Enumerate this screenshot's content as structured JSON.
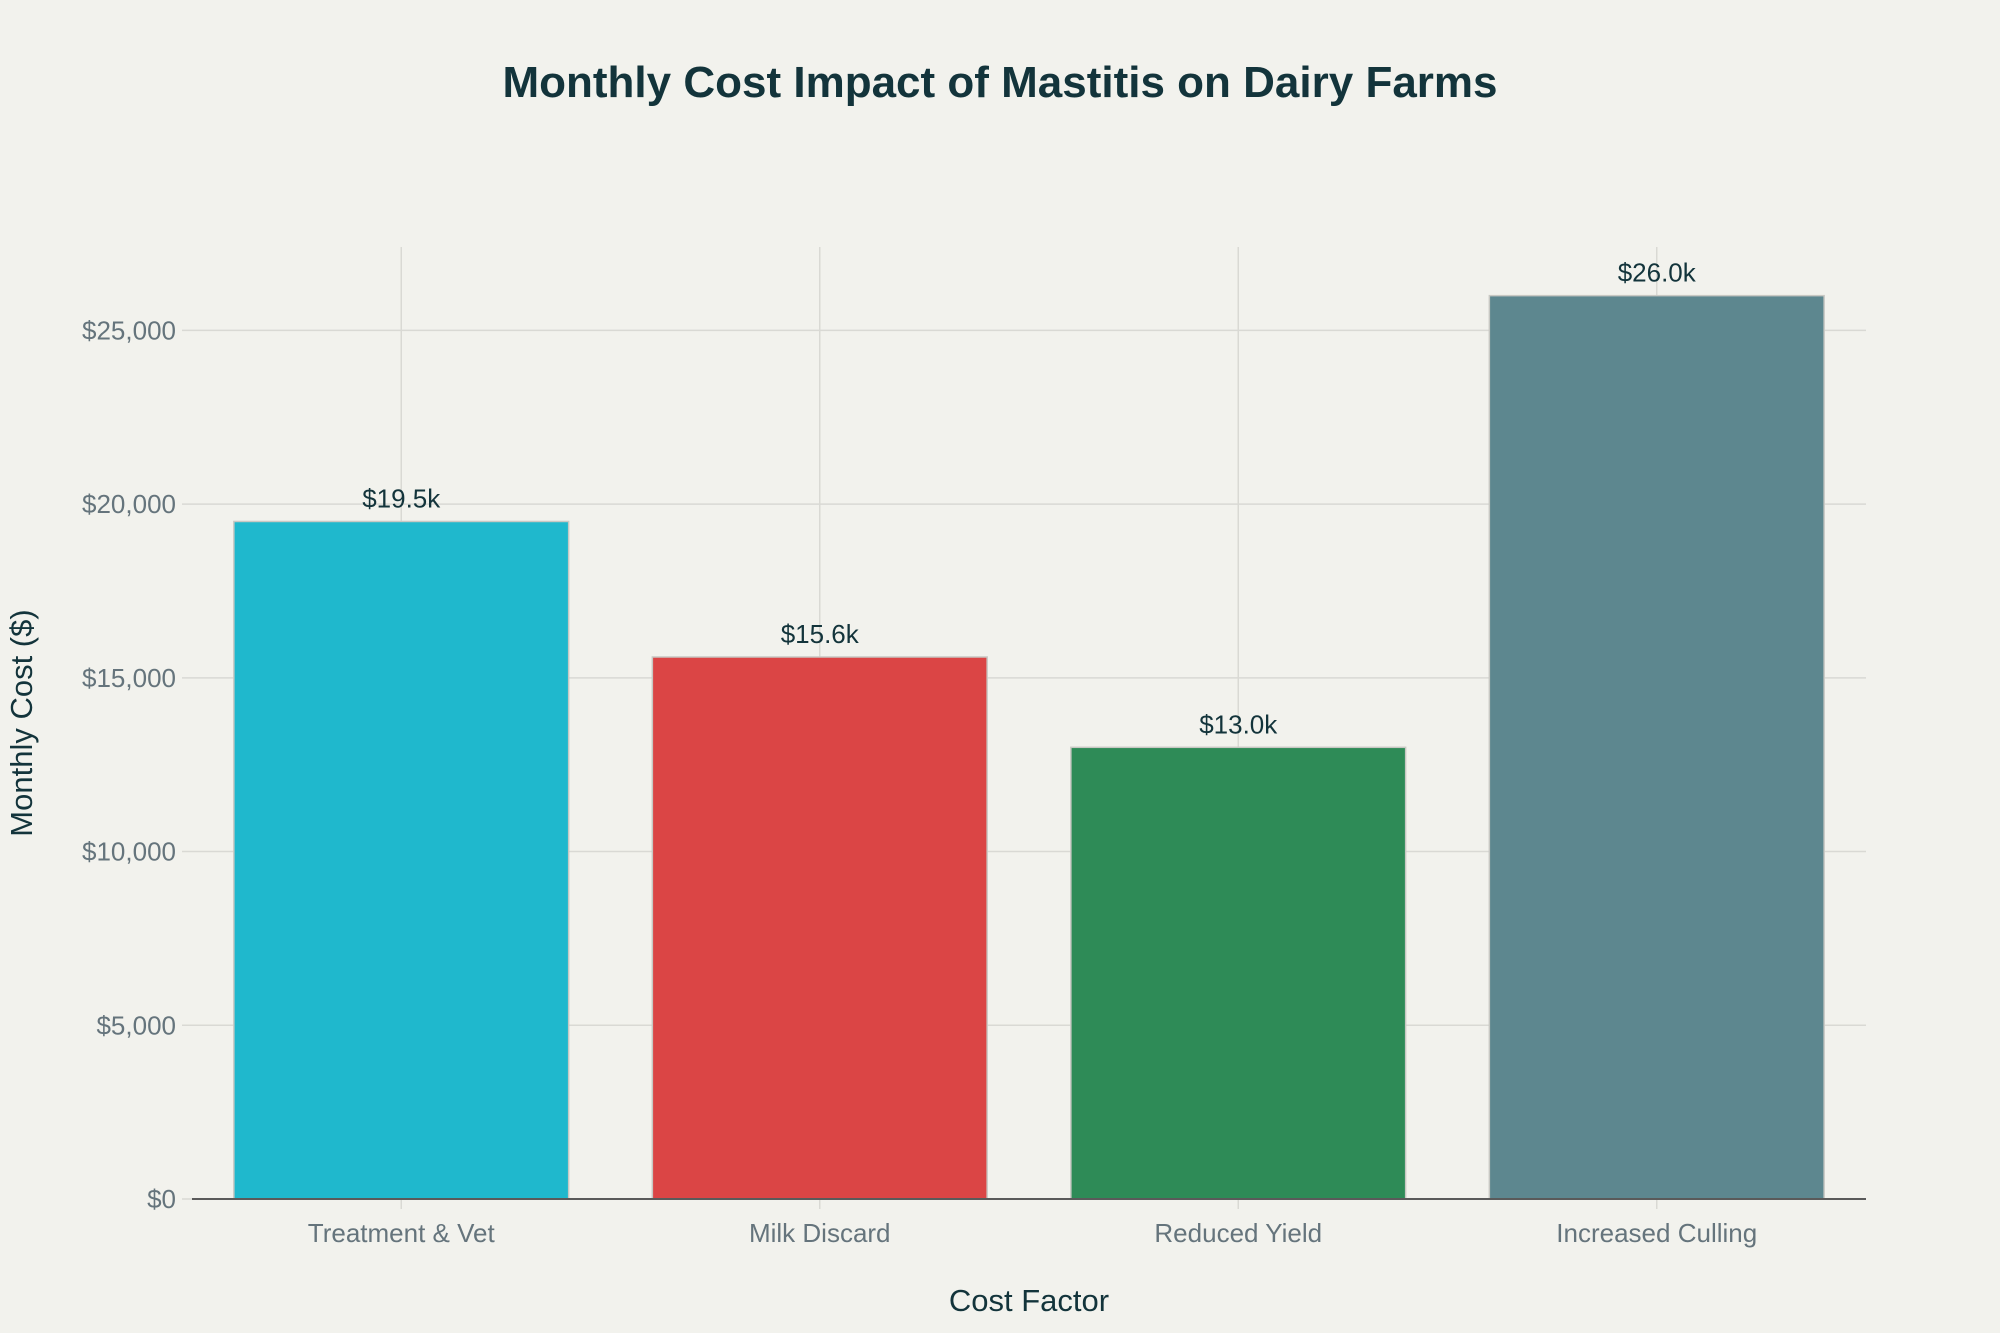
{
  "chart_data": {
    "type": "bar",
    "title": "Monthly Cost Impact of Mastitis on Dairy Farms",
    "xlabel": "Cost Factor",
    "ylabel": "Monthly Cost ($)",
    "categories": [
      "Treatment & Vet",
      "Milk Discard",
      "Reduced Yield",
      "Increased Culling"
    ],
    "values": [
      19500,
      15600,
      13000,
      26000
    ],
    "data_labels": [
      "$19.5k",
      "$15.6k",
      "$13.0k",
      "$26.0k"
    ],
    "colors": [
      "#1fb8cd",
      "#db4545",
      "#2e8b57",
      "#5d878f"
    ],
    "ylim": [
      0,
      27400
    ],
    "yticks": [
      0,
      5000,
      10000,
      15000,
      20000,
      25000
    ],
    "ytick_labels": [
      "$0",
      "$5,000",
      "$10,000",
      "$15,000",
      "$20,000",
      "$25,000"
    ],
    "grid": true,
    "legend": "none"
  }
}
